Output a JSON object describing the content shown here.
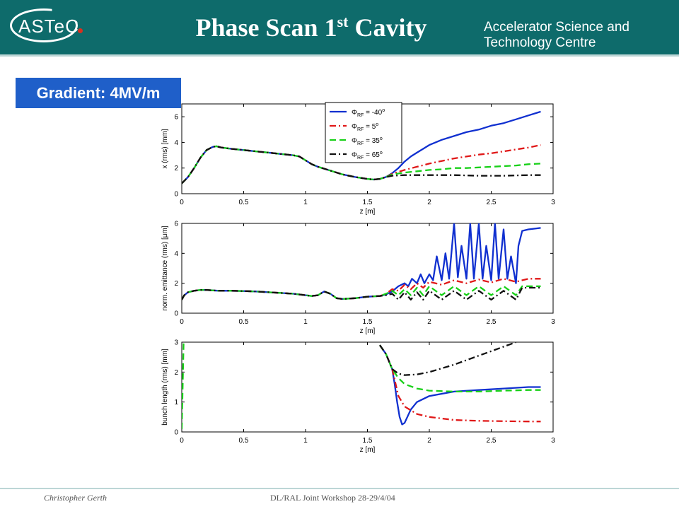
{
  "header": {
    "logo_text": "ASTeC",
    "title": "Phase Scan 1",
    "title_sup": "st",
    "title_tail": " Cavity",
    "org": "Accelerator Science and Technology Centre"
  },
  "badge": {
    "label": "Gradient: 4MV/m"
  },
  "footer": {
    "author": "Christopher Gerth",
    "event": "DL/RAL Joint Workshop 28-29/4/04"
  },
  "colors": {
    "header": "#0e6b6b",
    "badge": "#1f5fc9"
  },
  "chart_data": [
    {
      "type": "line",
      "xlabel": "z [m]",
      "ylabel": "x (rms) [mm]",
      "xlim": [
        0,
        3
      ],
      "ylim": [
        0,
        7
      ],
      "xticks": [
        0,
        0.5,
        1,
        1.5,
        2,
        2.5,
        3
      ],
      "xtick_labels": [
        "0",
        "0.5",
        "1",
        "1.5",
        "2",
        "2.5",
        "3"
      ],
      "yticks": [
        0,
        2,
        4,
        6
      ],
      "grid": false,
      "legend": {
        "placement": "top-center",
        "entries": [
          {
            "prefix": "Φ",
            "sub": "RF",
            "suffix": " = -40",
            "deg": "o"
          },
          {
            "prefix": "Φ",
            "sub": "RF",
            "suffix": " = 5",
            "deg": "o"
          },
          {
            "prefix": "Φ",
            "sub": "RF",
            "suffix": " = 35",
            "deg": "o"
          },
          {
            "prefix": "Φ",
            "sub": "RF",
            "suffix": " = 65",
            "deg": "o"
          }
        ]
      },
      "series": [
        {
          "color": "#1030d0",
          "dash": "solid",
          "x": [
            0,
            0.05,
            0.1,
            0.15,
            0.2,
            0.25,
            0.28,
            0.32,
            0.4,
            0.5,
            0.6,
            0.7,
            0.8,
            0.9,
            0.95,
            1.0,
            1.05,
            1.1,
            1.2,
            1.3,
            1.4,
            1.5,
            1.55,
            1.6,
            1.65,
            1.7,
            1.75,
            1.8,
            1.85,
            1.9,
            1.95,
            2.0,
            2.05,
            2.1,
            2.2,
            2.3,
            2.4,
            2.5,
            2.6,
            2.7,
            2.8,
            2.9
          ],
          "y": [
            0.8,
            1.3,
            2.0,
            2.8,
            3.4,
            3.65,
            3.7,
            3.6,
            3.5,
            3.4,
            3.3,
            3.2,
            3.1,
            3.0,
            2.9,
            2.6,
            2.3,
            2.1,
            1.8,
            1.5,
            1.3,
            1.15,
            1.1,
            1.15,
            1.3,
            1.6,
            2.0,
            2.5,
            2.9,
            3.2,
            3.5,
            3.8,
            4.0,
            4.2,
            4.5,
            4.8,
            5.0,
            5.3,
            5.5,
            5.8,
            6.1,
            6.4
          ]
        },
        {
          "color": "#e01818",
          "dash": "dashdot",
          "x": [
            0,
            0.05,
            0.1,
            0.15,
            0.2,
            0.25,
            0.28,
            0.32,
            0.4,
            0.5,
            0.6,
            0.7,
            0.8,
            0.9,
            0.95,
            1.0,
            1.05,
            1.1,
            1.2,
            1.3,
            1.4,
            1.5,
            1.55,
            1.6,
            1.65,
            1.7,
            1.8,
            1.9,
            2.0,
            2.1,
            2.2,
            2.3,
            2.4,
            2.5,
            2.6,
            2.7,
            2.8,
            2.9
          ],
          "y": [
            0.8,
            1.3,
            2.0,
            2.8,
            3.4,
            3.65,
            3.7,
            3.6,
            3.5,
            3.4,
            3.3,
            3.2,
            3.1,
            3.0,
            2.9,
            2.6,
            2.3,
            2.1,
            1.8,
            1.5,
            1.3,
            1.15,
            1.1,
            1.15,
            1.3,
            1.55,
            1.85,
            2.1,
            2.35,
            2.55,
            2.75,
            2.9,
            3.05,
            3.15,
            3.3,
            3.45,
            3.6,
            3.8
          ]
        },
        {
          "color": "#18d018",
          "dash": "dashed",
          "x": [
            0,
            0.05,
            0.1,
            0.15,
            0.2,
            0.25,
            0.28,
            0.32,
            0.4,
            0.5,
            0.6,
            0.7,
            0.8,
            0.9,
            0.95,
            1.0,
            1.05,
            1.1,
            1.2,
            1.3,
            1.4,
            1.5,
            1.55,
            1.6,
            1.65,
            1.7,
            1.8,
            1.9,
            2.0,
            2.1,
            2.2,
            2.3,
            2.4,
            2.5,
            2.6,
            2.7,
            2.8,
            2.9
          ],
          "y": [
            0.8,
            1.3,
            2.0,
            2.8,
            3.4,
            3.65,
            3.7,
            3.6,
            3.5,
            3.4,
            3.3,
            3.2,
            3.1,
            3.0,
            2.9,
            2.6,
            2.3,
            2.1,
            1.8,
            1.5,
            1.3,
            1.15,
            1.1,
            1.15,
            1.3,
            1.5,
            1.65,
            1.75,
            1.85,
            1.9,
            2.0,
            2.0,
            2.05,
            2.1,
            2.15,
            2.2,
            2.3,
            2.35
          ]
        },
        {
          "color": "#111111",
          "dash": "dashdot",
          "x": [
            0,
            0.05,
            0.1,
            0.15,
            0.2,
            0.25,
            0.28,
            0.32,
            0.4,
            0.5,
            0.6,
            0.7,
            0.8,
            0.9,
            0.95,
            1.0,
            1.05,
            1.1,
            1.2,
            1.3,
            1.4,
            1.5,
            1.55,
            1.6,
            1.65,
            1.7,
            1.8,
            1.9,
            2.0,
            2.2,
            2.4,
            2.6,
            2.8,
            2.9
          ],
          "y": [
            0.8,
            1.3,
            2.0,
            2.8,
            3.4,
            3.65,
            3.7,
            3.6,
            3.5,
            3.4,
            3.3,
            3.2,
            3.1,
            3.0,
            2.9,
            2.6,
            2.3,
            2.1,
            1.8,
            1.5,
            1.3,
            1.15,
            1.1,
            1.15,
            1.3,
            1.4,
            1.45,
            1.45,
            1.45,
            1.45,
            1.4,
            1.4,
            1.45,
            1.45
          ]
        }
      ]
    },
    {
      "type": "line",
      "xlabel": "z [m]",
      "ylabel": "norm. emittance (rms) [μm]",
      "xlim": [
        0,
        3
      ],
      "ylim": [
        0,
        6
      ],
      "xticks": [
        0,
        0.5,
        1,
        1.5,
        2,
        2.5,
        3
      ],
      "xtick_labels": [
        "0",
        "0.5",
        "1",
        "1.5",
        "2",
        "2.5",
        "3"
      ],
      "yticks": [
        0,
        2,
        4,
        6
      ],
      "grid": false,
      "series": [
        {
          "color": "#1030d0",
          "dash": "solid",
          "x": [
            0,
            0.02,
            0.05,
            0.1,
            0.15,
            0.2,
            0.3,
            0.4,
            0.5,
            0.6,
            0.7,
            0.8,
            0.9,
            1.0,
            1.05,
            1.1,
            1.15,
            1.2,
            1.25,
            1.3,
            1.4,
            1.5,
            1.6,
            1.65,
            1.7,
            1.75,
            1.8,
            1.83,
            1.86,
            1.9,
            1.93,
            1.96,
            2.0,
            2.03,
            2.06,
            2.1,
            2.13,
            2.16,
            2.2,
            2.23,
            2.26,
            2.3,
            2.33,
            2.36,
            2.4,
            2.43,
            2.46,
            2.5,
            2.53,
            2.56,
            2.6,
            2.63,
            2.66,
            2.7,
            2.72,
            2.75,
            2.8,
            2.9
          ],
          "y": [
            0.9,
            1.2,
            1.4,
            1.5,
            1.55,
            1.55,
            1.5,
            1.5,
            1.48,
            1.45,
            1.4,
            1.35,
            1.3,
            1.2,
            1.15,
            1.2,
            1.45,
            1.3,
            1.0,
            0.95,
            1.0,
            1.1,
            1.15,
            1.25,
            1.45,
            1.8,
            2.0,
            1.8,
            2.3,
            2.0,
            2.6,
            2.0,
            2.6,
            2.2,
            3.8,
            2.2,
            4.0,
            2.3,
            6.0,
            2.4,
            4.5,
            2.3,
            6.0,
            2.3,
            6.0,
            2.3,
            4.5,
            2.2,
            6.0,
            2.3,
            5.6,
            2.3,
            3.8,
            2.0,
            4.5,
            5.5,
            5.6,
            5.7
          ]
        },
        {
          "color": "#e01818",
          "dash": "dashdot",
          "x": [
            0,
            0.02,
            0.05,
            0.1,
            0.15,
            0.2,
            0.3,
            0.4,
            0.5,
            0.6,
            0.7,
            0.8,
            0.9,
            1.0,
            1.05,
            1.1,
            1.15,
            1.2,
            1.25,
            1.3,
            1.4,
            1.5,
            1.6,
            1.65,
            1.7,
            1.75,
            1.8,
            1.85,
            1.9,
            1.95,
            2.0,
            2.1,
            2.2,
            2.3,
            2.4,
            2.5,
            2.6,
            2.7,
            2.8,
            2.9
          ],
          "y": [
            0.9,
            1.2,
            1.4,
            1.5,
            1.55,
            1.55,
            1.5,
            1.5,
            1.48,
            1.45,
            1.4,
            1.35,
            1.3,
            1.2,
            1.15,
            1.2,
            1.45,
            1.3,
            1.0,
            0.95,
            1.0,
            1.1,
            1.15,
            1.3,
            1.6,
            1.5,
            1.9,
            1.6,
            2.0,
            1.7,
            2.1,
            1.9,
            2.2,
            2.0,
            2.25,
            2.05,
            2.3,
            2.1,
            2.3,
            2.3
          ]
        },
        {
          "color": "#18d018",
          "dash": "dashed",
          "x": [
            0,
            0.02,
            0.05,
            0.1,
            0.15,
            0.2,
            0.3,
            0.4,
            0.5,
            0.6,
            0.7,
            0.8,
            0.9,
            1.0,
            1.05,
            1.1,
            1.15,
            1.2,
            1.25,
            1.3,
            1.4,
            1.5,
            1.6,
            1.65,
            1.7,
            1.75,
            1.8,
            1.85,
            1.9,
            1.95,
            2.0,
            2.1,
            2.2,
            2.3,
            2.4,
            2.5,
            2.6,
            2.7,
            2.75,
            2.8,
            2.9
          ],
          "y": [
            0.9,
            1.2,
            1.4,
            1.5,
            1.55,
            1.55,
            1.5,
            1.5,
            1.48,
            1.45,
            1.4,
            1.35,
            1.3,
            1.2,
            1.15,
            1.2,
            1.45,
            1.3,
            1.0,
            0.95,
            1.0,
            1.1,
            1.15,
            1.3,
            1.5,
            1.2,
            1.6,
            1.2,
            1.7,
            1.2,
            1.8,
            1.2,
            1.8,
            1.2,
            1.8,
            1.2,
            1.8,
            1.2,
            1.8,
            1.8,
            1.8
          ]
        },
        {
          "color": "#111111",
          "dash": "dashdot",
          "x": [
            0,
            0.02,
            0.05,
            0.1,
            0.15,
            0.2,
            0.3,
            0.4,
            0.5,
            0.6,
            0.7,
            0.8,
            0.9,
            1.0,
            1.05,
            1.1,
            1.15,
            1.2,
            1.25,
            1.3,
            1.4,
            1.5,
            1.6,
            1.65,
            1.7,
            1.75,
            1.8,
            1.85,
            1.9,
            1.95,
            2.0,
            2.1,
            2.2,
            2.3,
            2.4,
            2.5,
            2.6,
            2.7,
            2.75,
            2.8,
            2.9
          ],
          "y": [
            0.9,
            1.2,
            1.4,
            1.5,
            1.55,
            1.55,
            1.5,
            1.5,
            1.48,
            1.45,
            1.4,
            1.35,
            1.3,
            1.2,
            1.15,
            1.2,
            1.45,
            1.3,
            1.0,
            0.95,
            1.0,
            1.1,
            1.15,
            1.2,
            1.3,
            0.9,
            1.4,
            0.9,
            1.4,
            0.9,
            1.5,
            0.9,
            1.5,
            0.9,
            1.5,
            0.9,
            1.5,
            0.9,
            1.7,
            1.7,
            1.7
          ]
        }
      ]
    },
    {
      "type": "line",
      "xlabel": "z [m]",
      "ylabel": "bunch length (rms) [mm]",
      "xlim": [
        0,
        3
      ],
      "ylim": [
        0,
        3
      ],
      "xticks": [
        0,
        0.5,
        1,
        1.5,
        2,
        2.5,
        3
      ],
      "xtick_labels": [
        "0",
        "0.5",
        "1",
        "1.5",
        "2",
        "2.5",
        "3"
      ],
      "yticks": [
        0,
        1,
        2,
        3
      ],
      "grid": false,
      "series": [
        {
          "color": "#1030d0",
          "dash": "solid",
          "x": [
            1.6,
            1.65,
            1.7,
            1.72,
            1.74,
            1.76,
            1.78,
            1.8,
            1.85,
            1.9,
            2.0,
            2.2,
            2.4,
            2.6,
            2.8,
            2.9
          ],
          "y": [
            2.9,
            2.6,
            2.1,
            1.6,
            1.0,
            0.5,
            0.25,
            0.3,
            0.75,
            1.0,
            1.2,
            1.35,
            1.4,
            1.45,
            1.5,
            1.5
          ]
        },
        {
          "color": "#e01818",
          "dash": "dashdot",
          "x": [
            1.6,
            1.65,
            1.7,
            1.75,
            1.8,
            1.9,
            2.0,
            2.2,
            2.4,
            2.6,
            2.8,
            2.9
          ],
          "y": [
            2.9,
            2.6,
            2.1,
            1.2,
            0.85,
            0.6,
            0.5,
            0.4,
            0.37,
            0.36,
            0.35,
            0.35
          ]
        },
        {
          "color": "#18d018",
          "dash": "dashed",
          "x": [
            1.6,
            1.65,
            1.7,
            1.75,
            1.8,
            1.9,
            2.0,
            2.2,
            2.4,
            2.6,
            2.8,
            2.9
          ],
          "y": [
            2.9,
            2.6,
            2.1,
            1.8,
            1.6,
            1.45,
            1.38,
            1.35,
            1.35,
            1.38,
            1.4,
            1.4
          ]
        },
        {
          "color": "#111111",
          "dash": "dashdot",
          "x": [
            1.6,
            1.65,
            1.7,
            1.75,
            1.8,
            1.9,
            2.0,
            2.2,
            2.4,
            2.6,
            2.7
          ],
          "y": [
            2.9,
            2.6,
            2.1,
            1.95,
            1.9,
            1.92,
            2.0,
            2.25,
            2.55,
            2.85,
            3.0
          ]
        },
        {
          "color": "#18d018",
          "dash": "dashed",
          "x": [
            0.0,
            0.015,
            0.03
          ],
          "y": [
            0.1,
            3.0,
            3.0
          ]
        }
      ]
    }
  ]
}
